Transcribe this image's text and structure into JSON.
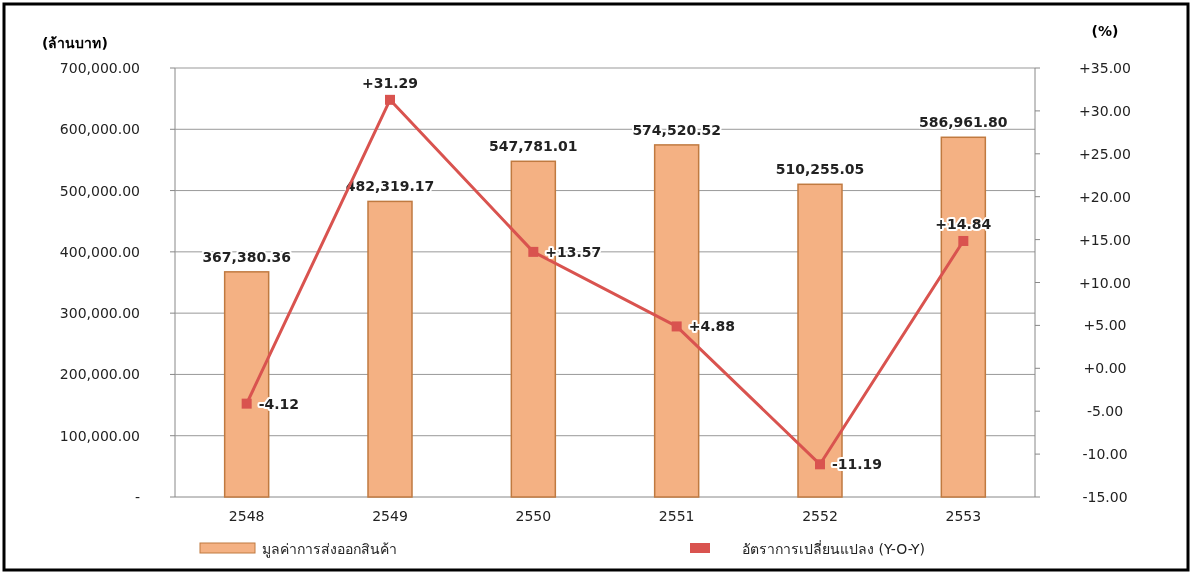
{
  "chart_data": {
    "type": "bar",
    "ylabel": "(ล้านบาท)",
    "y2label": "(%)",
    "categories": [
      "2548",
      "2549",
      "2550",
      "2551",
      "2552",
      "2553"
    ],
    "series": [
      {
        "name": "มูลค่าการส่งออกสินค้า",
        "color": "#f4b183",
        "values": [
          367380.36,
          482319.17,
          547781.01,
          574520.52,
          510255.05,
          586961.8
        ],
        "value_labels": [
          "367,380.36",
          "482,319.17",
          "547,781.01",
          "574,520.52",
          "510,255.05",
          "586,961.80"
        ]
      },
      {
        "name": "อัตราการเปลี่ยนแปลง (Y-O-Y)",
        "type": "line",
        "axis": "y2",
        "color": "#d9534f",
        "marker": "square",
        "values": [
          -4.12,
          31.29,
          13.57,
          4.88,
          -11.19,
          14.84
        ],
        "value_labels": [
          "-4.12",
          "+31.29",
          "+13.57",
          "+4.88",
          "-11.19",
          "+14.84"
        ]
      }
    ],
    "ylim": [
      0,
      700000
    ],
    "yticks": [
      {
        "value": 0,
        "label": "-"
      },
      {
        "value": 100000,
        "label": "100,000.00"
      },
      {
        "value": 200000,
        "label": "200,000.00"
      },
      {
        "value": 300000,
        "label": "300,000.00"
      },
      {
        "value": 400000,
        "label": "400,000.00"
      },
      {
        "value": 500000,
        "label": "500,000.00"
      },
      {
        "value": 600000,
        "label": "600,000.00"
      },
      {
        "value": 700000,
        "label": "700,000.00"
      }
    ],
    "y2lim": [
      -15,
      35
    ],
    "y2ticks": [
      {
        "value": -15,
        "label": "-15.00"
      },
      {
        "value": -10,
        "label": "-10.00"
      },
      {
        "value": -5,
        "label": "-5.00"
      },
      {
        "value": 0,
        "label": "+0.00"
      },
      {
        "value": 5,
        "label": "+5.00"
      },
      {
        "value": 10,
        "label": "+10.00"
      },
      {
        "value": 15,
        "label": "+15.00"
      },
      {
        "value": 20,
        "label": "+20.00"
      },
      {
        "value": 25,
        "label": "+25.00"
      },
      {
        "value": 30,
        "label": "+30.00"
      },
      {
        "value": 35,
        "label": "+35.00"
      }
    ],
    "grid": "y",
    "legend": "bottom"
  }
}
